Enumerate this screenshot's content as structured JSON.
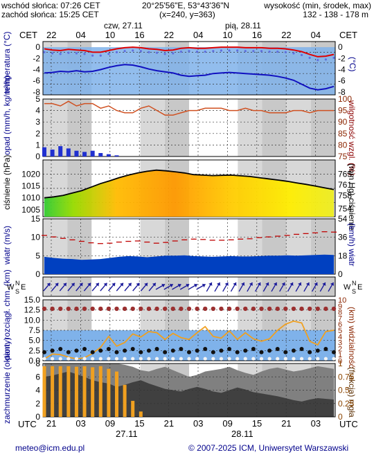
{
  "header": {
    "sunrise": "wschód słońca: 07:26 CET",
    "sunset": "zachód słońca: 15:25 CET",
    "coords": "20°25'56\"E, 53°43'36\"N",
    "grid": "(x=240,  y=363)",
    "elevation_label": "wysokość (min, środek, max)",
    "elevation_values": "132 - 138 - 178 m",
    "tz_left": "CET",
    "tz_right": "CET",
    "day1": "czw, 27.11",
    "day2": "pią, 28.11",
    "top_hours": [
      "22",
      "04",
      "10",
      "16",
      "22",
      "04",
      "10",
      "16",
      "22",
      "04"
    ]
  },
  "bottom": {
    "tz_left": "UTC",
    "tz_right": "UTC",
    "hours": [
      "21",
      "03",
      "09",
      "15",
      "21",
      "03",
      "09",
      "15",
      "21",
      "03"
    ],
    "date1": "27.11",
    "date2": "28.11"
  },
  "footer": {
    "email": "meteo@icm.edu.pl",
    "copyright": "© 2007-2025 ICM, Uniwersytet Warszawski"
  },
  "colors": {
    "temp_red": "#e00000",
    "temp_blue": "#1010c0",
    "rain_blue": "#2030d0",
    "humidity": "#d05020",
    "wind_band": "#0040c0",
    "gust_red": "#c00000",
    "fog_orange": "#f0a020",
    "cloud_dark": "#404040"
  },
  "chart_data": [
    {
      "type": "line",
      "ylabel": "temperatura (°C)",
      "ylabel_right": "(°C)",
      "ylim": [
        -8.5,
        1
      ],
      "yticks": [
        0,
        -2,
        -4,
        -6,
        -8
      ],
      "series": [
        {
          "values": [
            -0.3,
            -0.5,
            -0.6,
            -0.4,
            -0.5,
            -0.6,
            -0.9,
            -0.9,
            -0.6,
            -0.3,
            -0.1,
            0,
            -0.1,
            -0.3,
            -0.4,
            -0.6,
            -0.5,
            -0.2,
            -0.1,
            -0.2,
            -0.2,
            -0.1,
            0,
            0,
            0,
            -0.1,
            -0.1,
            -0.1,
            -0.2,
            -0.2,
            -0.3,
            -0.5,
            -0.8,
            -1.3,
            -1.7,
            -1.6,
            -1.3
          ]
        },
        {
          "values": [
            -4.6,
            -4.5,
            -4.3,
            -4.4,
            -4.2,
            -4.4,
            -4.3,
            -4.0,
            -3.6,
            -3.3,
            -3.1,
            -3.2,
            -3.5,
            -3.9,
            -4.2,
            -4.4,
            -4.6,
            -5.0,
            -5.2,
            -5.1,
            -5.0,
            -4.7,
            -4.6,
            -4.5,
            -4.6,
            -4.7,
            -4.8,
            -4.9,
            -5.0,
            -5.2,
            -5.5,
            -5.9,
            -6.6,
            -7.3,
            -7.6,
            -7.4,
            -7.0
          ]
        }
      ]
    },
    {
      "type": "bar",
      "ylabel": "opad (mm/h, kg/m²/h)",
      "ylabel_right": "wilgotność wzgl. (%)",
      "ylim": [
        0,
        5
      ],
      "yticks": [
        0,
        1,
        2,
        3,
        4,
        5
      ],
      "yticks_right": [
        75,
        80,
        85,
        90,
        95,
        100
      ],
      "series": [
        {
          "values": [
            0.8,
            0.6,
            0.9,
            0.7,
            0.5,
            0.4,
            0.5,
            0.3,
            0.2,
            0.1,
            0,
            0,
            0,
            0,
            0,
            0,
            0,
            0,
            0,
            0,
            0,
            0,
            0,
            0,
            0,
            0,
            0,
            0,
            0,
            0,
            0,
            0,
            0,
            0,
            0,
            0,
            0
          ]
        },
        {
          "values": [
            98,
            98,
            97,
            99,
            97,
            98,
            98,
            96,
            97,
            95,
            94,
            94,
            96,
            97,
            95,
            93,
            93,
            94,
            95,
            95,
            96,
            96,
            96,
            95,
            95,
            96,
            95,
            95,
            94,
            94,
            94,
            95,
            95,
            94,
            95,
            95,
            95
          ]
        }
      ]
    },
    {
      "type": "line",
      "ylabel": "ciśnienie (hPa)",
      "ylabel_right": "(mm Hg) ciśnienie",
      "ylim": [
        1002,
        1026
      ],
      "yticks": [
        1005,
        1010,
        1015,
        1020
      ],
      "yticks_right": [
        754,
        758,
        761,
        765
      ],
      "series": [
        {
          "values": [
            1010,
            1010.4,
            1011,
            1012,
            1013,
            1014.5,
            1016,
            1017.2,
            1018.5,
            1019.6,
            1020.5,
            1021.2,
            1021.7,
            1021.4,
            1021,
            1020.5,
            1019.8,
            1019.6,
            1019.4,
            1019.5,
            1019.6,
            1019.3,
            1019,
            1018.5,
            1018,
            1017.5,
            1017,
            1016.3,
            1015.7,
            1015,
            1014.2,
            1013.5
          ]
        }
      ]
    },
    {
      "type": "line",
      "ylabel": "wiatr (m/s)",
      "ylabel_right": "(km/h) wiatr",
      "ylim": [
        0,
        15
      ],
      "yticks": [
        0,
        5,
        10,
        15
      ],
      "yticks_right": [
        0,
        18,
        36,
        54
      ],
      "series": [
        {
          "values": [
            4.7,
            4.4,
            4.2,
            4.1,
            3.9,
            4.0,
            4.1,
            4.4,
            4.7,
            4.9,
            4.8,
            4.6,
            4.8,
            5.0,
            5.0,
            5.1,
            4.9,
            4.8,
            4.7,
            4.8,
            4.9,
            4.8,
            4.8,
            4.9,
            5.0,
            5.0,
            5.1,
            5.0,
            5.1,
            5.2,
            5.3,
            5.2
          ]
        },
        {
          "values": [
            10.5,
            10.1,
            9.7,
            9.3,
            8.9,
            8.5,
            8.3,
            8.4,
            8.7,
            8.9,
            9.0,
            8.7,
            8.4,
            8.6,
            9.0,
            9.3,
            9.5,
            9.4,
            9.2,
            9.2,
            9.3,
            9.5,
            9.6,
            9.9,
            10.1,
            10.3,
            10.5,
            10.8,
            11.0,
            11.2,
            11.5,
            11.4
          ]
        }
      ]
    },
    {
      "type": "line",
      "ylabel": "pion. rozciągł. chm. (km)",
      "ylabel_right": "(km) widzialność",
      "ylim": [
        0,
        15
      ],
      "yticks": [
        0,
        2.5,
        5,
        7.5,
        10,
        12.5,
        15
      ],
      "yticks_right": [
        0,
        1,
        2,
        3,
        4,
        5,
        6,
        7,
        8,
        9,
        10
      ],
      "series": [
        {
          "values": [
            0.3,
            1.1,
            1.0,
            0.6,
            0.3,
            0.5,
            1.2,
            2.2,
            4.0,
            2.4,
            3.0,
            4.4,
            3.9,
            4.8,
            4.6,
            3.5,
            4.5,
            3.8,
            3.5,
            4.6,
            5.6,
            4.0,
            3.7,
            4.9,
            3.5,
            4.6,
            3.6,
            3.2,
            3.6,
            5.0,
            6.0,
            6.5,
            6.2,
            3.2,
            2.6,
            4.8,
            5.0
          ]
        }
      ]
    },
    {
      "type": "area",
      "ylabel": "zachmurzenie (oktanty)",
      "ylabel_right": "(frakcja) mgła",
      "ylim": [
        0,
        8
      ],
      "yticks": [
        0,
        2,
        4,
        6,
        8
      ],
      "yticks_right": [
        0,
        0.25,
        0.5,
        0.75,
        1
      ],
      "series": [
        {
          "values": [
            0.95,
            0.95,
            0.95,
            0.95,
            0.94,
            0.95,
            0.93,
            0.95,
            0.9,
            0.85,
            0.6,
            0.3,
            0.1,
            0,
            0,
            0,
            0,
            0,
            0,
            0,
            0,
            0,
            0,
            0,
            0,
            0,
            0,
            0,
            0,
            0,
            0,
            0,
            0,
            0,
            0,
            0,
            0
          ]
        }
      ]
    }
  ]
}
